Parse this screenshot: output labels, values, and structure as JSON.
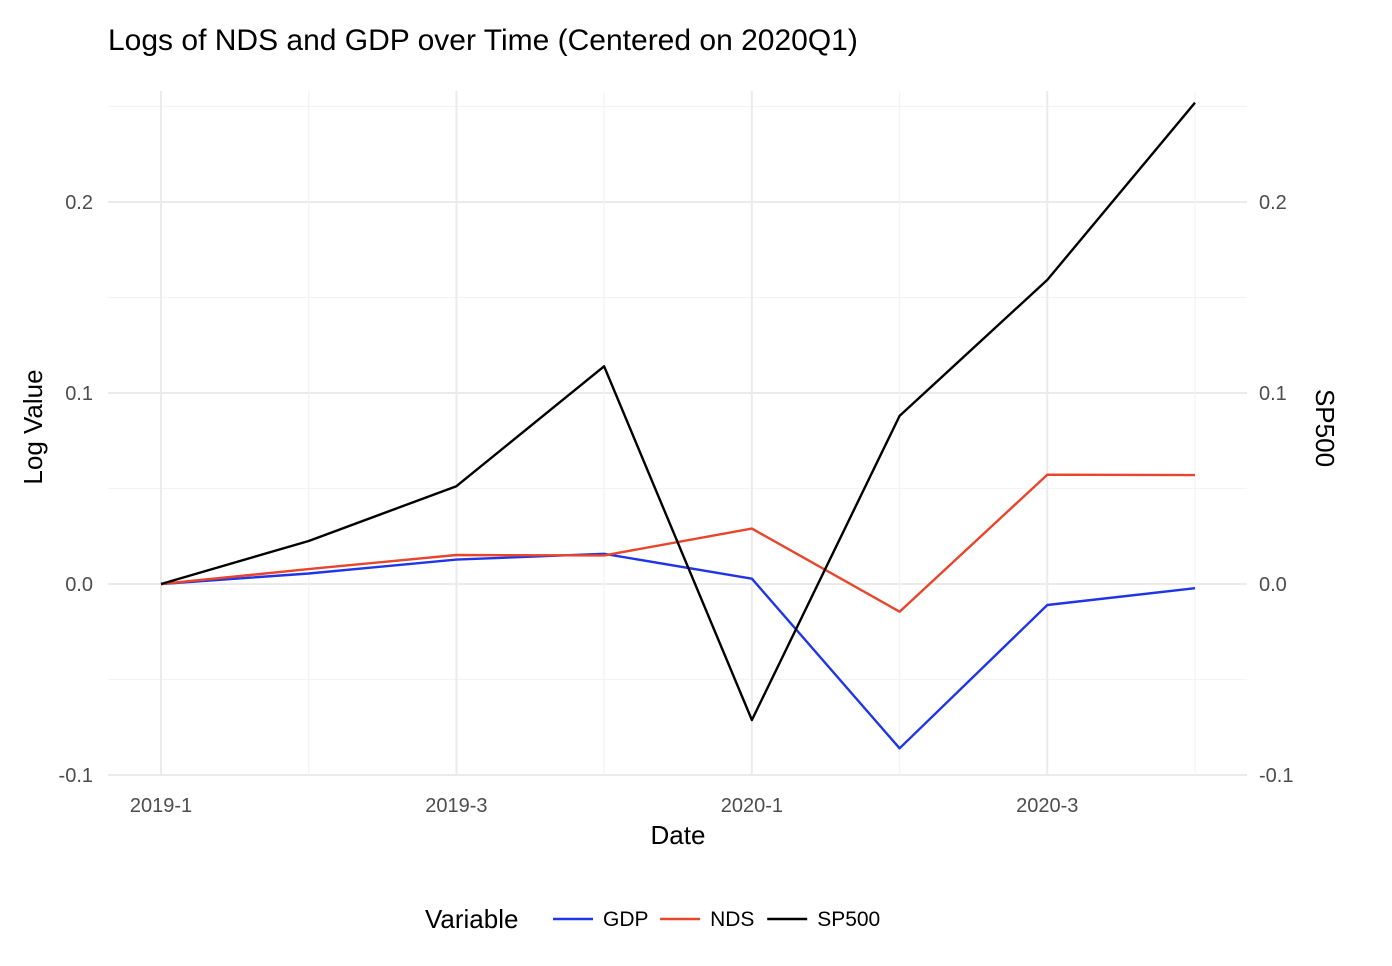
{
  "chart_data": {
    "type": "line",
    "title": "Logs of NDS and GDP over Time (Centered on 2020Q1)",
    "xlabel": "Date",
    "ylabel": "Log Value",
    "ylabel_right": "SP500",
    "x": [
      "2019-1",
      "2019-2",
      "2019-3",
      "2019-4",
      "2020-1",
      "2020-2",
      "2020-3",
      "2020-4"
    ],
    "x_tick_labels": [
      "2019-1",
      "2019-3",
      "2020-1",
      "2020-3"
    ],
    "ylim": [
      -0.1,
      0.255
    ],
    "y_ticks": [
      -0.1,
      0.0,
      0.1,
      0.2
    ],
    "y_tick_labels": [
      "-0.1",
      "0.0",
      "0.1",
      "0.2"
    ],
    "grid": true,
    "legend": {
      "title": "Variable",
      "position": "bottom"
    },
    "series": [
      {
        "name": "GDP",
        "color": "#1f35e8",
        "values": [
          0.0,
          0.0055,
          0.0128,
          0.0158,
          0.0028,
          -0.086,
          -0.011,
          -0.0022
        ]
      },
      {
        "name": "NDS",
        "color": "#e8452c",
        "values": [
          0.0,
          0.0078,
          0.0152,
          0.015,
          0.029,
          -0.0145,
          0.0572,
          0.057
        ]
      },
      {
        "name": "SP500",
        "color": "#000000",
        "values": [
          0.0,
          0.0225,
          0.0512,
          0.114,
          -0.0712,
          0.088,
          0.1592,
          0.252
        ]
      }
    ]
  }
}
